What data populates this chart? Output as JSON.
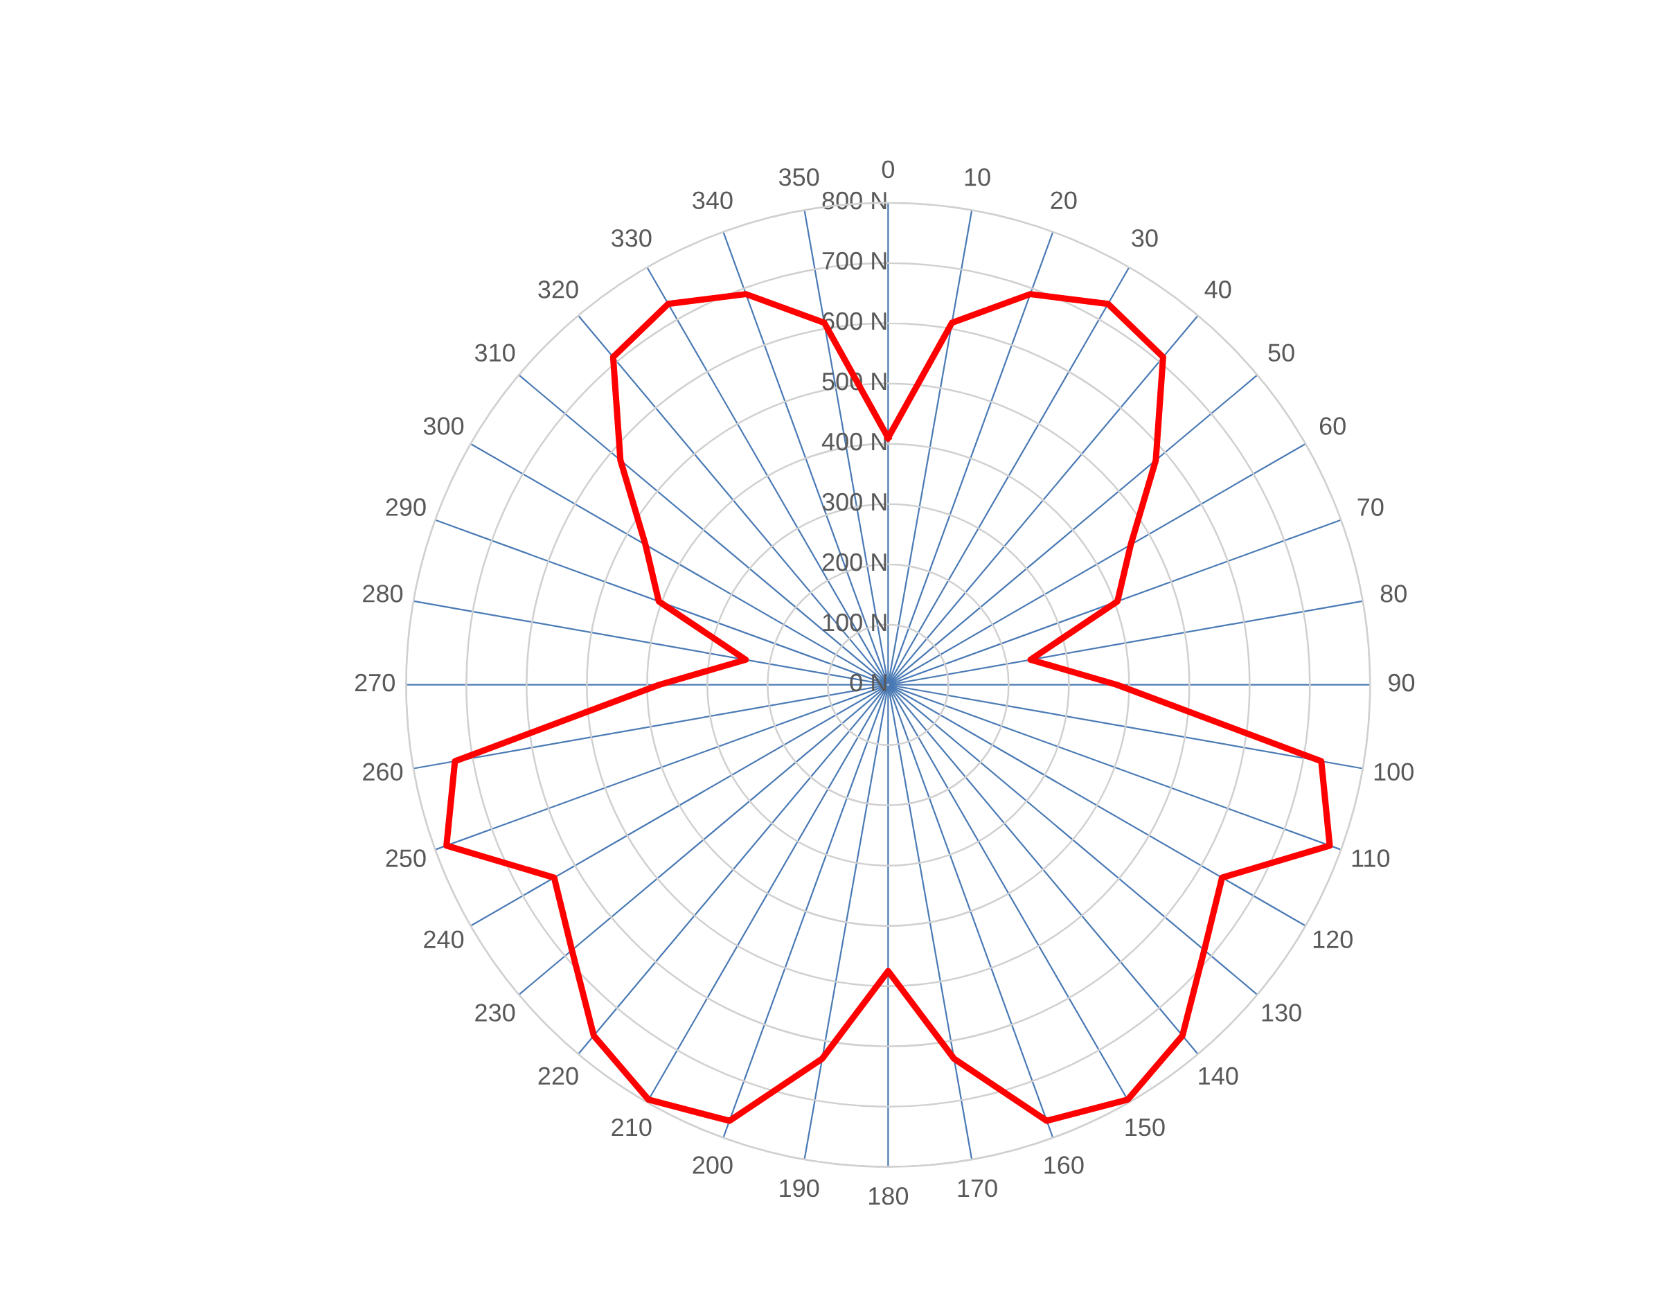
{
  "chart_data": {
    "type": "radar",
    "categories": [
      "0",
      "10",
      "20",
      "30",
      "40",
      "50",
      "60",
      "70",
      "80",
      "90",
      "100",
      "110",
      "120",
      "130",
      "140",
      "150",
      "160",
      "170",
      "180",
      "190",
      "200",
      "210",
      "220",
      "230",
      "240",
      "250",
      "260",
      "270",
      "280",
      "290",
      "300",
      "310",
      "320",
      "330",
      "340",
      "350"
    ],
    "series": [
      {
        "color": "#ff0000",
        "values": [
          410,
          610,
          690,
          730,
          710,
          580,
          465,
          405,
          240,
          380,
          730,
          780,
          640,
          685,
          760,
          795,
          770,
          630,
          475,
          630,
          770,
          795,
          760,
          685,
          640,
          780,
          730,
          380,
          240,
          405,
          465,
          580,
          710,
          730,
          690,
          610
        ]
      }
    ],
    "ylim": [
      0,
      800
    ],
    "yticks": [
      {
        "value": 0,
        "label": "0 N"
      },
      {
        "value": 100,
        "label": "100 N"
      },
      {
        "value": 200,
        "label": "200 N"
      },
      {
        "value": 300,
        "label": "300 N"
      },
      {
        "value": 400,
        "label": "400 N"
      },
      {
        "value": 500,
        "label": "500 N"
      },
      {
        "value": 600,
        "label": "600 N"
      },
      {
        "value": 700,
        "label": "700 N"
      },
      {
        "value": 800,
        "label": "800 N"
      }
    ],
    "grid": true
  }
}
